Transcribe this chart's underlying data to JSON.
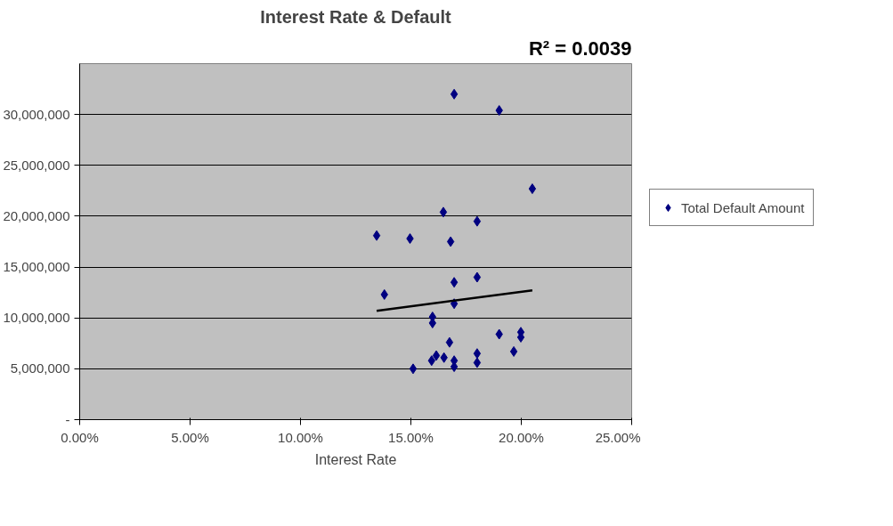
{
  "chart_data": {
    "type": "scatter",
    "title": "Interest Rate & Default",
    "xlabel": "Interest Rate",
    "annotations": [
      "R² = 0.0039"
    ],
    "xlim": [
      0,
      0.25
    ],
    "ylim": [
      0,
      35000000
    ],
    "xticks": [
      {
        "value": 0,
        "label": "0.00%"
      },
      {
        "value": 0.05,
        "label": "5.00%"
      },
      {
        "value": 0.1,
        "label": "10.00%"
      },
      {
        "value": 0.15,
        "label": "15.00%"
      },
      {
        "value": 0.2,
        "label": "20.00%"
      },
      {
        "value": 0.25,
        "label": "25.00%"
      }
    ],
    "yticks": [
      {
        "value": 0,
        "label": "-"
      },
      {
        "value": 5000000,
        "label": "5,000,000"
      },
      {
        "value": 10000000,
        "label": "10,000,000"
      },
      {
        "value": 15000000,
        "label": "15,000,000"
      },
      {
        "value": 20000000,
        "label": "20,000,000"
      },
      {
        "value": 25000000,
        "label": "25,000,000"
      },
      {
        "value": 30000000,
        "label": "30,000,000"
      }
    ],
    "grid": "y",
    "legend": "right",
    "series": [
      {
        "name": "Total Default Amount",
        "color": "#000080",
        "marker": "diamond",
        "x": [
          0.1345,
          0.138,
          0.1496,
          0.151,
          0.1647,
          0.168,
          0.1696,
          0.1696,
          0.1696,
          0.18,
          0.18,
          0.19,
          0.205,
          0.1598,
          0.1598,
          0.1675,
          0.1594,
          0.1615,
          0.165,
          0.1696,
          0.1696,
          0.18,
          0.18,
          0.19,
          0.1966,
          0.1998,
          0.1998
        ],
        "values": [
          18100000,
          12300000,
          17800000,
          5000000,
          20400000,
          17500000,
          32000000,
          13500000,
          11400000,
          19500000,
          14000000,
          30400000,
          22700000,
          10100000,
          9500000,
          7600000,
          5800000,
          6300000,
          6100000,
          5800000,
          5200000,
          6500000,
          5600000,
          8400000,
          6700000,
          8600000,
          8100000
        ]
      },
      {
        "type": "line",
        "color": "#000000",
        "x": [
          0.1345,
          0.205
        ],
        "values": [
          10700000,
          12700000
        ],
        "marker": "none",
        "line_style": "solid"
      }
    ]
  }
}
